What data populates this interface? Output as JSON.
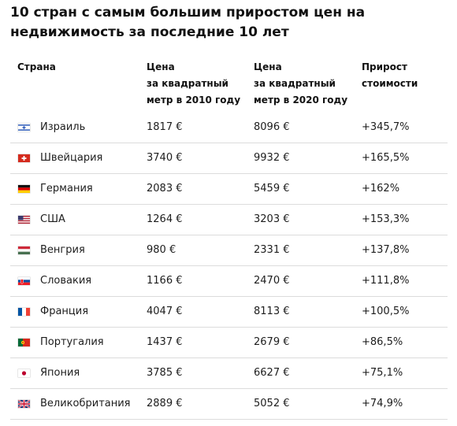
{
  "title": "10 стран с самым большим приростом цен на недвижимость за последние 10 лет",
  "headers": {
    "country": "Страна",
    "price2010": [
      "Цена",
      "за квадратный",
      "метр в 2010 году"
    ],
    "price2020": [
      "Цена",
      "за квадратный",
      "метр в 2020 году"
    ],
    "growth": [
      "Прирост",
      "стоимости"
    ]
  },
  "rows": [
    {
      "country": "Израиль",
      "flag": "israel-flag",
      "p2010": "1817 €",
      "p2020": "8096 €",
      "growth": "+345,7%"
    },
    {
      "country": "Швейцария",
      "flag": "switzerland-flag",
      "p2010": "3740 €",
      "p2020": "9932 €",
      "growth": "+165,5%"
    },
    {
      "country": "Германия",
      "flag": "germany-flag",
      "p2010": "2083 €",
      "p2020": "5459 €",
      "growth": "+162%"
    },
    {
      "country": "США",
      "flag": "usa-flag",
      "p2010": "1264 €",
      "p2020": "3203 €",
      "growth": "+153,3%"
    },
    {
      "country": "Венгрия",
      "flag": "hungary-flag",
      "p2010": "980 €",
      "p2020": "2331 €",
      "growth": "+137,8%"
    },
    {
      "country": "Словакия",
      "flag": "slovakia-flag",
      "p2010": "1166 €",
      "p2020": "2470 €",
      "growth": "+111,8%"
    },
    {
      "country": "Франция",
      "flag": "france-flag",
      "p2010": "4047 €",
      "p2020": "8113 €",
      "growth": "+100,5%"
    },
    {
      "country": "Португалия",
      "flag": "portugal-flag",
      "p2010": "1437 €",
      "p2020": "2679 €",
      "growth": "+86,5%"
    },
    {
      "country": "Япония",
      "flag": "japan-flag",
      "p2010": "3785 €",
      "p2020": "6627 €",
      "growth": "+75,1%"
    },
    {
      "country": "Великобритания",
      "flag": "uk-flag",
      "p2010": "2889 €",
      "p2020": "5052 €",
      "growth": "+74,9%"
    }
  ]
}
